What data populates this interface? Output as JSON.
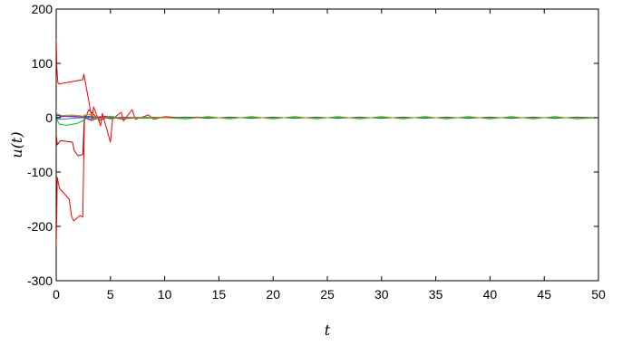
{
  "chart_data": {
    "type": "line",
    "title": "",
    "xlabel": "t",
    "ylabel": "u(t)",
    "xlim": [
      0,
      50
    ],
    "ylim": [
      -300,
      200
    ],
    "xticks": [
      0,
      5,
      10,
      15,
      20,
      25,
      30,
      35,
      40,
      45,
      50
    ],
    "yticks": [
      -300,
      -200,
      -100,
      0,
      100,
      200
    ],
    "grid": false,
    "legend": "none",
    "series": [
      {
        "color": "#ff0000",
        "x": [
          0,
          0.05,
          0.15,
          0.25,
          2.45,
          2.55,
          3.3,
          3.45,
          4.1,
          4.25,
          5.0,
          5.2,
          6.0,
          6.2,
          7.0,
          7.3,
          8.5,
          9.0,
          10.0,
          11.5,
          13.0,
          15.0,
          20.0,
          30.0,
          40.0,
          50.0
        ],
        "y": [
          145,
          95,
          65,
          62,
          70,
          80,
          -2,
          20,
          -15,
          8,
          -45,
          -2,
          10,
          -6,
          15,
          -3,
          5,
          -3,
          2,
          0,
          1,
          0,
          0,
          0,
          0,
          0
        ]
      },
      {
        "color": "#ff0000",
        "x": [
          0,
          0.1,
          0.3,
          1.2,
          1.4,
          1.6,
          1.9,
          2.2,
          2.45,
          2.6,
          3.0,
          3.5,
          4.0,
          5.0,
          6.0,
          8.0,
          10.0,
          15.0,
          30.0,
          50.0
        ],
        "y": [
          -235,
          -110,
          -130,
          -150,
          -180,
          -190,
          -185,
          -180,
          -183,
          -5,
          15,
          5,
          -5,
          3,
          -2,
          1,
          0,
          0,
          0,
          0
        ]
      },
      {
        "color": "#c80000",
        "x": [
          0,
          0.1,
          0.4,
          1.5,
          1.65,
          2.0,
          2.45,
          2.6,
          3.2,
          4.5,
          6.0,
          8.0,
          10.0,
          20.0,
          50.0
        ],
        "y": [
          -30,
          -50,
          -42,
          -45,
          -60,
          -70,
          -68,
          5,
          -5,
          3,
          -2,
          1,
          0,
          0,
          0
        ]
      },
      {
        "color": "#00cc00",
        "x": [
          0,
          0.1,
          0.3,
          1.0,
          1.5,
          2.0,
          2.5,
          3.0,
          3.5,
          4.0,
          5.0,
          6.0,
          8.0,
          10.0,
          12.0,
          14.0,
          16.0,
          18.0,
          20.0,
          22.0,
          24.0,
          26.0,
          28.0,
          30.0,
          32.0,
          34.0,
          36.0,
          38.0,
          40.0,
          42.0,
          44.0,
          46.0,
          48.0,
          50.0
        ],
        "y": [
          15,
          -5,
          -12,
          -14,
          -12,
          -10,
          -5,
          3,
          -3,
          2,
          -2,
          1,
          -1,
          0,
          -2,
          2,
          -2,
          2,
          -2,
          2,
          -2,
          2,
          -2,
          2,
          -2,
          2,
          -2,
          2,
          -2,
          2,
          -2,
          2,
          -2,
          0
        ]
      },
      {
        "color": "#0000ff",
        "x": [
          0,
          0.5,
          1.5,
          2.5,
          3.0,
          4.0,
          5.0,
          6.0,
          8.0,
          10.0,
          12.0,
          14.0,
          16.0,
          18.0,
          20.0,
          22.0,
          24.0,
          26.0,
          28.0,
          30.0,
          32.0,
          34.0,
          36.0,
          38.0,
          40.0,
          42.0,
          44.0,
          46.0,
          48.0,
          50.0
        ],
        "y": [
          5,
          3,
          2,
          1,
          2,
          -1,
          1,
          -1,
          1,
          0,
          1,
          -1,
          1,
          -1,
          1,
          -1,
          1,
          -1,
          1,
          -1,
          1,
          -1,
          1,
          -1,
          1,
          -1,
          1,
          -1,
          1,
          0
        ]
      },
      {
        "color": "#cc00cc",
        "x": [
          0,
          0.5,
          1.5,
          2.5,
          3.0,
          4.0,
          5.0,
          6.0,
          8.0,
          10.0,
          15.0,
          20.0,
          30.0,
          40.0,
          50.0
        ],
        "y": [
          0,
          2,
          3,
          1,
          -3,
          2,
          -1,
          1,
          0,
          0,
          0,
          0,
          0,
          0,
          0
        ]
      },
      {
        "color": "#00a0a0",
        "x": [
          0,
          0.5,
          1.5,
          2.5,
          3.0,
          4.0,
          5.0,
          6.0,
          8.0,
          10.0,
          15.0,
          20.0,
          30.0,
          40.0,
          50.0
        ],
        "y": [
          -2,
          -3,
          -1,
          0,
          1,
          -1,
          1,
          0,
          0,
          0,
          0,
          0,
          0,
          0,
          0
        ]
      },
      {
        "color": "#999900",
        "x": [
          0,
          0.5,
          1.5,
          2.5,
          3.0,
          4.0,
          5.0,
          6.0,
          8.0,
          10.0,
          15.0,
          20.0,
          30.0,
          40.0,
          50.0
        ],
        "y": [
          8,
          4,
          5,
          3,
          6,
          -2,
          3,
          -1,
          1,
          0,
          0,
          0,
          0,
          0,
          0
        ]
      }
    ]
  }
}
